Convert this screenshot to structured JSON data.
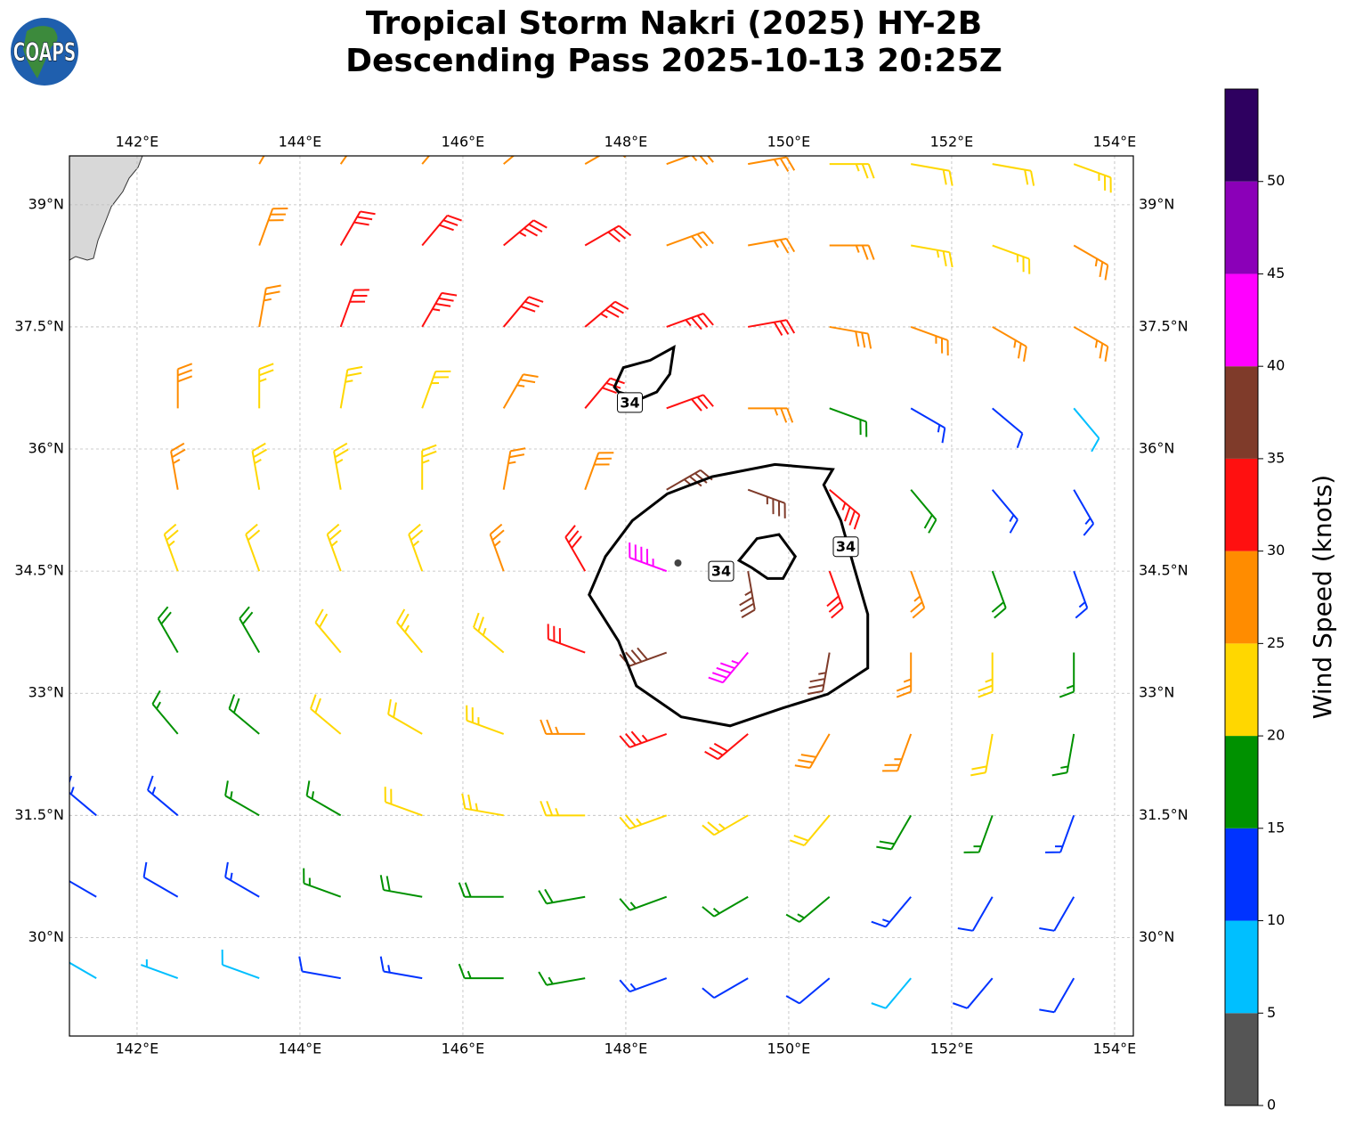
{
  "chart_data": {
    "type": "barbs",
    "title": [
      "Tropical Storm Nakri (2025) HY-2B",
      "Descending Pass 2025-10-13 20:25Z"
    ],
    "logo": "COAPS",
    "xlim": [
      141.17,
      154.23
    ],
    "ylim": [
      28.79,
      39.6
    ],
    "xticks": [
      {
        "value": 142,
        "label": "142°E"
      },
      {
        "value": 144,
        "label": "144°E"
      },
      {
        "value": 146,
        "label": "146°E"
      },
      {
        "value": 148,
        "label": "148°E"
      },
      {
        "value": 150,
        "label": "150°E"
      },
      {
        "value": 152,
        "label": "152°E"
      },
      {
        "value": 154,
        "label": "154°E"
      }
    ],
    "yticks": [
      {
        "value": 30,
        "label": "30°N"
      },
      {
        "value": 31.5,
        "label": "31.5°N"
      },
      {
        "value": 33,
        "label": "33°N"
      },
      {
        "value": 34.5,
        "label": "34.5°N"
      },
      {
        "value": 36,
        "label": "36°N"
      },
      {
        "value": 37.5,
        "label": "37.5°N"
      },
      {
        "value": 39,
        "label": "39°N"
      }
    ],
    "grid": true,
    "wind": {
      "lon": [
        141.5,
        142.5,
        143.5,
        144.5,
        145.5,
        146.5,
        147.5,
        148.5,
        149.5,
        150.5,
        151.5,
        152.5,
        153.5
      ],
      "lat": [
        39.5,
        38.5,
        37.5,
        36.5,
        35.5,
        34.5,
        33.5,
        32.5,
        31.5,
        30.5,
        29.5
      ],
      "speed": [
        [
          null,
          null,
          27,
          27,
          27,
          27,
          27,
          27,
          25,
          23,
          22,
          22,
          24
        ],
        [
          null,
          null,
          28,
          30,
          32,
          33,
          30,
          28,
          27,
          25,
          24,
          24,
          27
        ],
        [
          null,
          null,
          27,
          32,
          33,
          32,
          33,
          33,
          31,
          28,
          27,
          27,
          26
        ],
        [
          null,
          28,
          24,
          23,
          24,
          27,
          32,
          30,
          25,
          18,
          13,
          10,
          9
        ],
        [
          null,
          27,
          23,
          23,
          23,
          25,
          28,
          37,
          37,
          33,
          18,
          14,
          13
        ],
        [
          null,
          24,
          22,
          23,
          23,
          25,
          31,
          43,
          37,
          31,
          25,
          18,
          14
        ],
        [
          null,
          18,
          19,
          22,
          23,
          24,
          30,
          38,
          43,
          36,
          27,
          23,
          17
        ],
        [
          null,
          17,
          18,
          20,
          22,
          24,
          27,
          33,
          32,
          29,
          25,
          22,
          16
        ],
        [
          13,
          13,
          15,
          17,
          21,
          23,
          23,
          24,
          23,
          22,
          18,
          15,
          13
        ],
        [
          12,
          12,
          13,
          15,
          18,
          19,
          18,
          17,
          16,
          17,
          14,
          12,
          12
        ],
        [
          7,
          7,
          9,
          11,
          14,
          16,
          17,
          14,
          12,
          10,
          9,
          10,
          11
        ]
      ],
      "direction": [
        [
          null,
          null,
          30,
          35,
          40,
          50,
          60,
          70,
          80,
          90,
          100,
          100,
          110
        ],
        [
          null,
          null,
          20,
          30,
          40,
          50,
          60,
          70,
          80,
          90,
          100,
          110,
          120
        ],
        [
          null,
          null,
          10,
          20,
          30,
          40,
          50,
          70,
          80,
          100,
          110,
          120,
          120
        ],
        [
          null,
          0,
          0,
          10,
          20,
          30,
          40,
          70,
          90,
          110,
          120,
          130,
          140
        ],
        [
          null,
          350,
          350,
          350,
          0,
          10,
          20,
          60,
          110,
          130,
          140,
          140,
          150
        ],
        [
          null,
          340,
          340,
          340,
          340,
          340,
          330,
          290,
          170,
          160,
          160,
          160,
          160
        ],
        [
          null,
          330,
          330,
          320,
          320,
          310,
          290,
          250,
          220,
          190,
          180,
          180,
          180
        ],
        [
          null,
          320,
          310,
          310,
          300,
          290,
          270,
          250,
          230,
          210,
          200,
          190,
          190
        ],
        [
          310,
          310,
          300,
          300,
          290,
          280,
          270,
          250,
          240,
          220,
          210,
          200,
          200
        ],
        [
          300,
          300,
          300,
          290,
          280,
          270,
          260,
          250,
          240,
          230,
          220,
          210,
          210
        ],
        [
          300,
          290,
          290,
          280,
          280,
          270,
          260,
          250,
          240,
          230,
          220,
          220,
          210
        ]
      ]
    },
    "center": {
      "lon": 148.64,
      "lat": 34.6
    },
    "contour_level": 34,
    "contours": [
      {
        "lon": [
          147.55,
          147.75,
          148.08,
          148.51,
          149.06,
          149.83,
          150.54,
          150.43,
          150.64,
          150.81,
          150.97,
          150.97,
          150.48,
          149.93,
          149.28,
          148.68,
          148.13,
          147.91
        ],
        "lat": [
          34.21,
          34.68,
          35.12,
          35.45,
          35.66,
          35.81,
          35.75,
          35.56,
          35.12,
          34.52,
          33.97,
          33.31,
          32.99,
          32.82,
          32.6,
          32.71,
          33.09,
          33.64
        ]
      },
      {
        "lon": [
          149.39,
          149.61,
          149.88,
          150.08,
          149.93,
          149.74,
          149.55
        ],
        "lat": [
          34.63,
          34.9,
          34.95,
          34.68,
          34.41,
          34.41,
          34.54
        ]
      },
      {
        "lon": [
          147.86,
          147.97,
          148.3,
          148.59,
          148.54,
          148.38,
          148.19,
          147.91
        ],
        "lat": [
          36.76,
          37.0,
          37.09,
          37.25,
          36.92,
          36.7,
          36.62,
          36.7
        ]
      }
    ],
    "contour_labels": [
      {
        "lon": 148.05,
        "lat": 36.57
      },
      {
        "lon": 149.17,
        "lat": 34.5
      },
      {
        "lon": 150.7,
        "lat": 34.8
      }
    ],
    "colorbar": {
      "label": "Wind Speed (knots)",
      "levels": [
        0,
        5,
        10,
        15,
        20,
        25,
        30,
        35,
        40,
        45,
        50,
        55
      ],
      "colors": [
        "#555555",
        "#00bfff",
        "#0033ff",
        "#009100",
        "#ffd700",
        "#ff8c00",
        "#ff1010",
        "#7f3b2a",
        "#ff00ff",
        "#8b00b8",
        "#2e0060"
      ],
      "ticks": [
        0,
        5,
        10,
        15,
        20,
        25,
        30,
        35,
        40,
        45,
        50
      ]
    }
  }
}
